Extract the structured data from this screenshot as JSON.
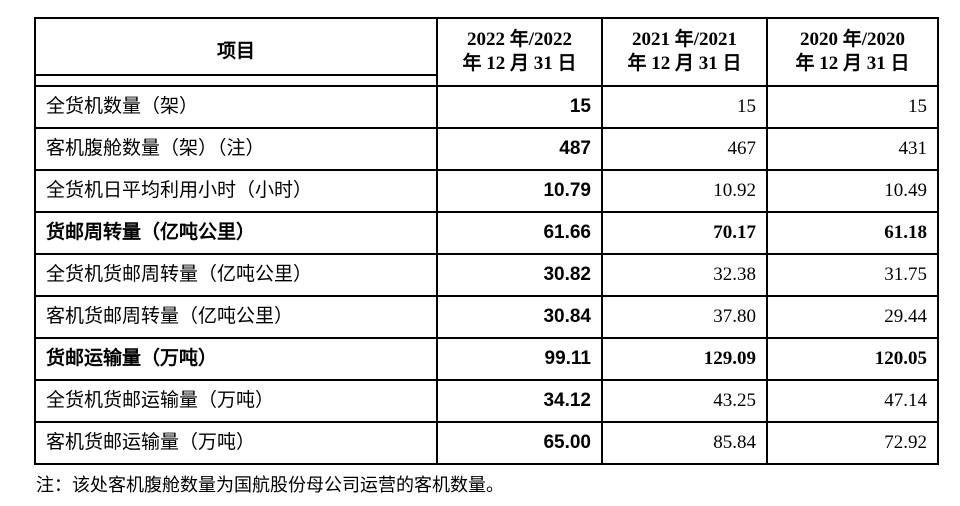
{
  "table": {
    "header": {
      "item_label": "项目",
      "year_columns": [
        {
          "line1": "2022 年/2022",
          "line2": "年 12 月 31 日"
        },
        {
          "line1": "2021 年/2021",
          "line2": "年 12 月 31 日"
        },
        {
          "line1": "2020 年/2020",
          "line2": "年 12 月 31 日"
        }
      ]
    },
    "rows": [
      {
        "label": "全货机数量（架）",
        "values": [
          "15",
          "15",
          "15"
        ],
        "bold": false
      },
      {
        "label": "客机腹舱数量（架）（注）",
        "values": [
          "487",
          "467",
          "431"
        ],
        "bold": false
      },
      {
        "label": "全货机日平均利用小时（小时）",
        "values": [
          "10.79",
          "10.92",
          "10.49"
        ],
        "bold": false
      },
      {
        "label": "货邮周转量（亿吨公里）",
        "values": [
          "61.66",
          "70.17",
          "61.18"
        ],
        "bold": true
      },
      {
        "label": "全货机货邮周转量（亿吨公里）",
        "values": [
          "30.82",
          "32.38",
          "31.75"
        ],
        "bold": false
      },
      {
        "label": "客机货邮周转量（亿吨公里）",
        "values": [
          "30.84",
          "37.80",
          "29.44"
        ],
        "bold": false
      },
      {
        "label": "货邮运输量（万吨）",
        "values": [
          "99.11",
          "129.09",
          "120.05"
        ],
        "bold": true
      },
      {
        "label": "全货机货邮运输量（万吨）",
        "values": [
          "34.12",
          "43.25",
          "47.14"
        ],
        "bold": false
      },
      {
        "label": "客机货邮运输量（万吨）",
        "values": [
          "65.00",
          "85.84",
          "72.92"
        ],
        "bold": false
      }
    ]
  },
  "footnote": "注：该处客机腹舱数量为国航股份母公司运营的客机数量。",
  "colors": {
    "background": "#ffffff",
    "border": "#000000",
    "text": "#000000"
  }
}
